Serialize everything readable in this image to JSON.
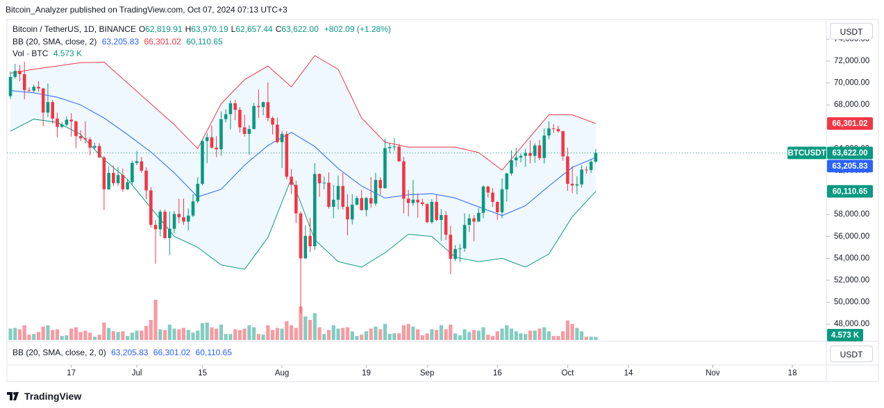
{
  "header": {
    "published": "Bitcoin_Analyzer published on TradingView.com, Oct 07, 2024 07:13 UTC+3"
  },
  "footer": {
    "logo": "TradingView"
  },
  "chart_data": {
    "type": "candlestick",
    "symbol": "Bitcoin / TetherUS, 1D, BINANCE",
    "currency": "USDT",
    "ohlc_legend": {
      "labels": [
        "O",
        "H",
        "L",
        "C"
      ],
      "values": [
        "62,819.91",
        "63,970.19",
        "62,657.44",
        "63,622.00"
      ],
      "change": "+802.09 (+1.28%)"
    },
    "bb_legend": {
      "name": "BB (20, SMA, close, 2)",
      "values": [
        "63,205.83",
        "66,301.02",
        "60,110.65"
      ]
    },
    "vol_legend": {
      "name": "Vol · BTC",
      "value": "4.573 K"
    },
    "bb_pane_legend": {
      "name": "BB (20, SMA, close, 2, 0)",
      "values": [
        "63,205.83",
        "66,301.02",
        "60,110.65"
      ]
    },
    "badges": {
      "upper": "66,301.02",
      "symbol": "BTCUSDT",
      "close": "63,622.00",
      "middle": "63,205.83",
      "lower": "60,110.65",
      "volume": "4.573 K"
    },
    "up_color": "#089981",
    "down_color": "#f23645",
    "ylim": [
      46550,
      75670
    ],
    "yticks": [
      {
        "value": 48000,
        "label": "48,000.00"
      },
      {
        "value": 50000,
        "label": "50,000.00"
      },
      {
        "value": 52000,
        "label": "52,000.00"
      },
      {
        "value": 54000,
        "label": "54,000.00"
      },
      {
        "value": 56000,
        "label": "56,000.00"
      },
      {
        "value": 58000,
        "label": "58,000.00"
      },
      {
        "value": 60000,
        "label": "60,000.00"
      },
      {
        "value": 62000,
        "label": "62,000.00"
      },
      {
        "value": 64000,
        "label": "64,000.00"
      },
      {
        "value": 66000,
        "label": "66,000.00"
      },
      {
        "value": 68000,
        "label": "68,000.00"
      },
      {
        "value": 70000,
        "label": "70,000.00"
      },
      {
        "value": 72000,
        "label": "72,000.00"
      },
      {
        "value": 74000,
        "label": "74,000.00"
      }
    ],
    "xticks": [
      {
        "value": "2024-06-17",
        "label": "17"
      },
      {
        "value": "2024-07-01",
        "label": "Jul"
      },
      {
        "value": "2024-07-15",
        "label": "15"
      },
      {
        "value": "2024-08-01",
        "label": "Aug"
      },
      {
        "value": "2024-08-19",
        "label": "19"
      },
      {
        "value": "2024-09-01",
        "label": "Sep"
      },
      {
        "value": "2024-09-16",
        "label": "16"
      },
      {
        "value": "2024-10-01",
        "label": "Oct"
      },
      {
        "value": "2024-10-14",
        "label": "14"
      },
      {
        "value": "2024-11-01",
        "label": "Nov"
      },
      {
        "value": "2024-11-18",
        "label": "18"
      }
    ],
    "candles": {
      "x": [
        "2024-06-04",
        "2024-06-05",
        "2024-06-06",
        "2024-06-07",
        "2024-06-08",
        "2024-06-09",
        "2024-06-10",
        "2024-06-11",
        "2024-06-12",
        "2024-06-13",
        "2024-06-14",
        "2024-06-15",
        "2024-06-16",
        "2024-06-17",
        "2024-06-18",
        "2024-06-19",
        "2024-06-20",
        "2024-06-21",
        "2024-06-22",
        "2024-06-23",
        "2024-06-24",
        "2024-06-25",
        "2024-06-26",
        "2024-06-27",
        "2024-06-28",
        "2024-06-29",
        "2024-06-30",
        "2024-07-01",
        "2024-07-02",
        "2024-07-03",
        "2024-07-04",
        "2024-07-05",
        "2024-07-06",
        "2024-07-07",
        "2024-07-08",
        "2024-07-09",
        "2024-07-10",
        "2024-07-11",
        "2024-07-12",
        "2024-07-13",
        "2024-07-14",
        "2024-07-15",
        "2024-07-16",
        "2024-07-17",
        "2024-07-18",
        "2024-07-19",
        "2024-07-20",
        "2024-07-21",
        "2024-07-22",
        "2024-07-23",
        "2024-07-24",
        "2024-07-25",
        "2024-07-26",
        "2024-07-27",
        "2024-07-28",
        "2024-07-29",
        "2024-07-30",
        "2024-07-31",
        "2024-08-01",
        "2024-08-02",
        "2024-08-03",
        "2024-08-04",
        "2024-08-05",
        "2024-08-06",
        "2024-08-07",
        "2024-08-08",
        "2024-08-09",
        "2024-08-10",
        "2024-08-11",
        "2024-08-12",
        "2024-08-13",
        "2024-08-14",
        "2024-08-15",
        "2024-08-16",
        "2024-08-17",
        "2024-08-18",
        "2024-08-19",
        "2024-08-20",
        "2024-08-21",
        "2024-08-22",
        "2024-08-23",
        "2024-08-24",
        "2024-08-25",
        "2024-08-26",
        "2024-08-27",
        "2024-08-28",
        "2024-08-29",
        "2024-08-30",
        "2024-08-31",
        "2024-09-01",
        "2024-09-02",
        "2024-09-03",
        "2024-09-04",
        "2024-09-05",
        "2024-09-06",
        "2024-09-07",
        "2024-09-08",
        "2024-09-09",
        "2024-09-10",
        "2024-09-11",
        "2024-09-12",
        "2024-09-13",
        "2024-09-14",
        "2024-09-15",
        "2024-09-16",
        "2024-09-17",
        "2024-09-18",
        "2024-09-19",
        "2024-09-20",
        "2024-09-21",
        "2024-09-22",
        "2024-09-23",
        "2024-09-24",
        "2024-09-25",
        "2024-09-26",
        "2024-09-27",
        "2024-09-28",
        "2024-09-29",
        "2024-09-30",
        "2024-10-01",
        "2024-10-02",
        "2024-10-03",
        "2024-10-04",
        "2024-10-05",
        "2024-10-06",
        "2024-10-07"
      ],
      "open": [
        68800,
        70550,
        71100,
        70800,
        69350,
        69300,
        69650,
        69500,
        67300,
        68250,
        66750,
        66000,
        66200,
        66650,
        66500,
        65150,
        64950,
        64850,
        64100,
        64250,
        63200,
        60300,
        61800,
        60850,
        61600,
        60300,
        60950,
        62700,
        62850,
        62000,
        60200,
        57050,
        56650,
        58250,
        55850,
        56700,
        58050,
        57750,
        57350,
        57900,
        59200,
        60800,
        64700,
        65050,
        64100,
        63950,
        66700,
        67150,
        68150,
        67550,
        65950,
        65350,
        65800,
        67900,
        67800,
        68250,
        66800,
        66200,
        64600,
        65350,
        61450,
        60700,
        58100,
        54000,
        56050,
        55100,
        61700,
        60850,
        60900,
        58700,
        59350,
        60600,
        58700,
        57550,
        58900,
        59500,
        58400,
        59500,
        59000,
        61150,
        60400,
        64050,
        64150,
        64200,
        62850,
        59450,
        59050,
        59350,
        59100,
        58950,
        57300,
        59150,
        57500,
        57950,
        56150,
        53950,
        54850,
        54900,
        57050,
        57650,
        57350,
        58150,
        60550,
        60000,
        59150,
        58200,
        60300,
        61750,
        62950,
        63200,
        63350,
        63600,
        63350,
        64300,
        63150,
        65200,
        65850,
        65800,
        65600,
        63300,
        60800,
        60650,
        60750,
        62100,
        62050,
        62819.91
      ],
      "high": [
        71050,
        71750,
        71650,
        71950,
        69600,
        69850,
        70150,
        69550,
        69950,
        68450,
        67300,
        66400,
        66950,
        67250,
        66550,
        65700,
        66500,
        65050,
        64550,
        64500,
        63350,
        62400,
        62500,
        62300,
        62200,
        61200,
        62900,
        63800,
        63250,
        62300,
        60500,
        57500,
        58450,
        58450,
        58250,
        58300,
        59450,
        59450,
        58550,
        59850,
        61400,
        64900,
        65400,
        66100,
        65150,
        67400,
        67600,
        68400,
        68450,
        67800,
        67100,
        66150,
        68200,
        69400,
        68300,
        70050,
        66950,
        66850,
        65600,
        65600,
        62150,
        61100,
        58300,
        57000,
        57700,
        62700,
        61750,
        61450,
        61850,
        60700,
        61550,
        61800,
        59850,
        59850,
        59700,
        60250,
        59600,
        61400,
        61800,
        61400,
        64950,
        64500,
        65000,
        64450,
        63250,
        60250,
        61150,
        59950,
        59450,
        59050,
        59400,
        59800,
        58500,
        58300,
        56950,
        55200,
        55300,
        58100,
        58050,
        57950,
        58600,
        60650,
        60650,
        60400,
        59200,
        61300,
        61800,
        63850,
        64100,
        63550,
        64000,
        64750,
        64500,
        64800,
        65850,
        66500,
        66250,
        66100,
        65650,
        64100,
        62400,
        61500,
        62500,
        62400,
        63000,
        63970.19
      ],
      "low": [
        68550,
        70400,
        70150,
        68500,
        69200,
        69150,
        69200,
        66050,
        66900,
        66300,
        65050,
        65850,
        66050,
        65100,
        64050,
        64700,
        64500,
        63400,
        63950,
        63200,
        58400,
        60250,
        60600,
        60600,
        60050,
        60250,
        60700,
        62500,
        61800,
        59400,
        56800,
        53500,
        56000,
        55750,
        54300,
        56300,
        57200,
        57050,
        56550,
        57750,
        59050,
        60650,
        62700,
        64000,
        63250,
        63350,
        66400,
        65750,
        66600,
        65450,
        65100,
        63450,
        65750,
        66800,
        67050,
        66500,
        65300,
        64500,
        62250,
        61200,
        59850,
        57200,
        49000,
        53950,
        54550,
        54750,
        59600,
        60300,
        58550,
        57650,
        58450,
        58450,
        56100,
        57100,
        58800,
        58350,
        57850,
        58600,
        58800,
        59800,
        60350,
        63600,
        63800,
        62800,
        58100,
        57850,
        58800,
        57700,
        58750,
        57200,
        57150,
        57400,
        55600,
        55650,
        52550,
        53750,
        53650,
        54600,
        56400,
        55550,
        57350,
        57650,
        59550,
        58700,
        57500,
        57650,
        59200,
        61550,
        62350,
        62750,
        62350,
        62650,
        62700,
        62950,
        62650,
        64850,
        65450,
        65450,
        62900,
        60150,
        59950,
        59850,
        60450,
        61700,
        61800,
        62657.44
      ],
      "close": [
        70550,
        71100,
        70800,
        69350,
        69300,
        69650,
        69500,
        67300,
        68250,
        66750,
        66000,
        66200,
        66650,
        66500,
        65150,
        64950,
        64850,
        64100,
        64250,
        63200,
        60300,
        61800,
        60850,
        61600,
        60300,
        60950,
        62700,
        62850,
        62000,
        60200,
        57050,
        56650,
        58250,
        55850,
        56700,
        58050,
        57750,
        57350,
        57900,
        59200,
        60800,
        64700,
        65050,
        64100,
        63950,
        66700,
        67150,
        68150,
        67550,
        65950,
        65350,
        65800,
        67900,
        67800,
        68250,
        66800,
        66200,
        64600,
        65350,
        61450,
        60700,
        58100,
        54000,
        56050,
        55100,
        61700,
        60850,
        60900,
        58700,
        59350,
        60600,
        58700,
        57550,
        58900,
        59500,
        58400,
        59500,
        59000,
        61150,
        60400,
        64050,
        64150,
        64200,
        62850,
        59450,
        59050,
        59350,
        59100,
        58950,
        57300,
        59150,
        57500,
        57950,
        56150,
        53950,
        54850,
        54900,
        57050,
        57650,
        57350,
        58150,
        60550,
        60000,
        59150,
        58200,
        60300,
        61750,
        62950,
        63200,
        63350,
        63600,
        63350,
        64300,
        63150,
        65200,
        65850,
        65800,
        65600,
        63300,
        60800,
        60650,
        60750,
        62100,
        62050,
        62819.91,
        63622
      ]
    },
    "volume": {
      "values": [
        17,
        18,
        16,
        22,
        8,
        9,
        12,
        20,
        22,
        15,
        16,
        6,
        7,
        17,
        19,
        12,
        14,
        11,
        5,
        8,
        26,
        18,
        13,
        12,
        13,
        6,
        11,
        14,
        14,
        21,
        30,
        60,
        16,
        15,
        23,
        17,
        16,
        18,
        15,
        11,
        14,
        25,
        26,
        19,
        17,
        23,
        9,
        9,
        16,
        15,
        17,
        22,
        19,
        9,
        8,
        22,
        15,
        18,
        17,
        28,
        22,
        18,
        50,
        35,
        30,
        40,
        19,
        9,
        15,
        22,
        17,
        18,
        19,
        13,
        6,
        8,
        13,
        17,
        20,
        16,
        24,
        9,
        10,
        10,
        22,
        24,
        20,
        16,
        7,
        10,
        16,
        15,
        22,
        16,
        23,
        10,
        7,
        16,
        12,
        15,
        14,
        19,
        8,
        6,
        13,
        17,
        22,
        17,
        13,
        10,
        9,
        14,
        14,
        17,
        19,
        13,
        6,
        6,
        13,
        29,
        24,
        18,
        13,
        5,
        5,
        4.573
      ]
    },
    "bb": {
      "x": [
        "2024-06-04",
        "2024-06-09",
        "2024-06-14",
        "2024-06-19",
        "2024-06-24",
        "2024-06-29",
        "2024-07-04",
        "2024-07-09",
        "2024-07-14",
        "2024-07-19",
        "2024-07-24",
        "2024-07-29",
        "2024-08-03",
        "2024-08-08",
        "2024-08-13",
        "2024-08-18",
        "2024-08-23",
        "2024-08-28",
        "2024-09-02",
        "2024-09-07",
        "2024-09-12",
        "2024-09-17",
        "2024-09-22",
        "2024-09-27",
        "2024-10-02",
        "2024-10-07"
      ],
      "upper": {
        "color": "#f23645",
        "values": [
          70900,
          71250,
          71550,
          71850,
          71900,
          70000,
          68100,
          66200,
          64000,
          68100,
          70300,
          71550,
          69650,
          72500,
          71250,
          66800,
          64600,
          64150,
          64150,
          64150,
          63650,
          62050,
          64600,
          67100,
          67100,
          66301.02
        ]
      },
      "middle": {
        "color": "#2962ff",
        "values": [
          69300,
          69100,
          68700,
          68000,
          66800,
          65300,
          63700,
          61800,
          59600,
          60300,
          62500,
          64300,
          65500,
          64200,
          62200,
          60600,
          59500,
          59800,
          59900,
          59500,
          58700,
          57900,
          58800,
          60600,
          62300,
          63205.83
        ]
      },
      "lower": {
        "color": "#089981",
        "values": [
          65600,
          66700,
          66400,
          65300,
          63000,
          61200,
          58600,
          56000,
          55000,
          53400,
          53000,
          55900,
          61300,
          55700,
          53700,
          53200,
          54500,
          56200,
          56000,
          54100,
          53700,
          54000,
          53200,
          54400,
          57800,
          60110.65
        ]
      },
      "fill": "#2196f3"
    }
  }
}
